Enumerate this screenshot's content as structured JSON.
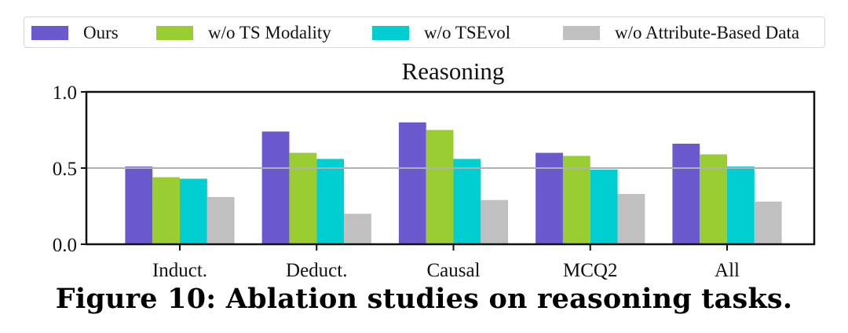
{
  "chart_data": {
    "type": "bar",
    "title": "Reasoning",
    "xlabel": "",
    "ylabel": "",
    "ylim": [
      0.0,
      1.0
    ],
    "yticks": [
      "0.0",
      "0.5",
      "1.0"
    ],
    "reference_line": 0.5,
    "legend_position": "top (above plot, horizontal)",
    "categories": [
      "Induct.",
      "Deduct.",
      "Causal",
      "MCQ2",
      "All"
    ],
    "series": [
      {
        "name": "Ours",
        "color": "#6a5acd",
        "values": [
          0.51,
          0.74,
          0.8,
          0.6,
          0.66
        ]
      },
      {
        "name": "w/o TS Modality",
        "color": "#9acd32",
        "values": [
          0.44,
          0.6,
          0.75,
          0.58,
          0.59
        ]
      },
      {
        "name": "w/o TSEvol",
        "color": "#00ced1",
        "values": [
          0.43,
          0.56,
          0.56,
          0.49,
          0.51
        ]
      },
      {
        "name": "w/o Attribute-Based Data",
        "color": "#c0c0c0",
        "values": [
          0.31,
          0.2,
          0.29,
          0.33,
          0.28
        ]
      }
    ]
  },
  "caption": "Figure 10: Ablation studies on reasoning tasks."
}
